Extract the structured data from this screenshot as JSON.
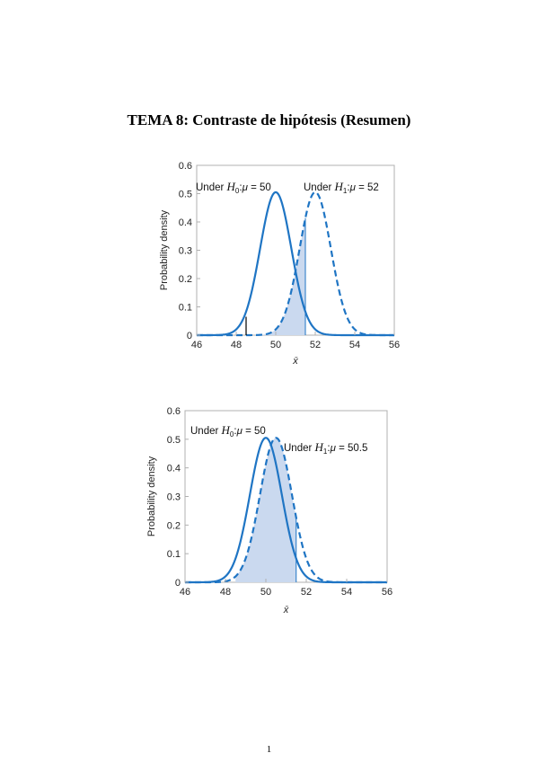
{
  "document": {
    "title": "TEMA 8: Contraste de hipótesis (Resumen)",
    "page_number": "1"
  },
  "colors": {
    "curve": "#1f75c4",
    "fill": "#cad9ef",
    "frame": "#b0b0b0"
  },
  "chart_data": [
    {
      "type": "line",
      "xlabel": "x̄",
      "ylabel": "Probability density",
      "xlim": [
        46,
        56
      ],
      "ylim": [
        0,
        0.6
      ],
      "xticks": [
        "46",
        "48",
        "50",
        "52",
        "54",
        "56"
      ],
      "yticks": [
        "0",
        "0.1",
        "0.2",
        "0.3",
        "0.4",
        "0.5",
        "0.6"
      ],
      "grid": false,
      "series": [
        {
          "label_prefix": "Under ",
          "hyp": "H",
          "sub": "0",
          "mu": "μ",
          "eq": " = 50",
          "mean": 50,
          "sd": 0.79,
          "style": "solid"
        },
        {
          "label_prefix": "Under ",
          "hyp": "H",
          "sub": "1",
          "mu": "μ",
          "eq": " = 52",
          "mean": 52,
          "sd": 0.79,
          "style": "dashed"
        }
      ],
      "shaded_region": {
        "under_series": 1,
        "from": 48.5,
        "to": 51.5
      },
      "marker_x": 48.5
    },
    {
      "type": "line",
      "xlabel": "x̄",
      "ylabel": "Probability density",
      "xlim": [
        46,
        56
      ],
      "ylim": [
        0,
        0.6
      ],
      "xticks": [
        "46",
        "48",
        "50",
        "52",
        "54",
        "56"
      ],
      "yticks": [
        "0",
        "0.1",
        "0.2",
        "0.3",
        "0.4",
        "0.5",
        "0.6"
      ],
      "grid": false,
      "series": [
        {
          "label_prefix": "Under ",
          "hyp": "H",
          "sub": "0",
          "mu": "μ",
          "eq": " = 50",
          "mean": 50,
          "sd": 0.79,
          "style": "solid"
        },
        {
          "label_prefix": "Under ",
          "hyp": "H",
          "sub": "1",
          "mu": "μ",
          "eq": " = 50.5",
          "mean": 50.5,
          "sd": 0.79,
          "style": "dashed"
        }
      ],
      "shaded_region": {
        "under_series": 1,
        "from": 48.5,
        "to": 51.5
      },
      "marker_x": null
    }
  ]
}
